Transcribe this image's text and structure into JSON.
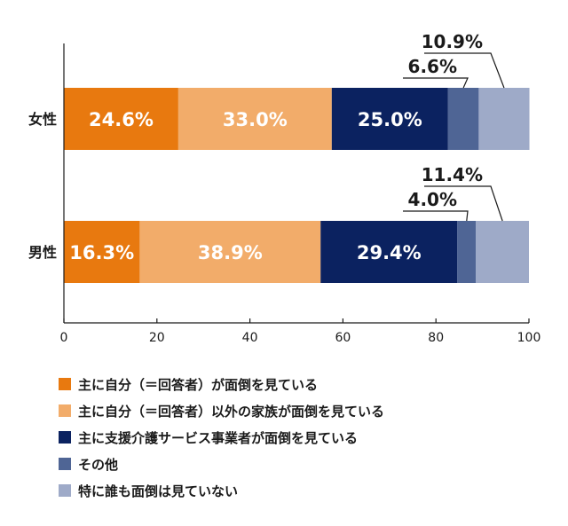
{
  "chart_data": {
    "type": "bar",
    "orientation": "horizontal",
    "stacked": true,
    "categories": [
      "女性",
      "男性"
    ],
    "series": [
      {
        "name": "主に自分（＝回答者）が面倒を見ている",
        "color": "#E8790F",
        "values": [
          24.6,
          16.3
        ],
        "labels": [
          "24.6%",
          "16.3%"
        ]
      },
      {
        "name": "主に自分（＝回答者）以外の家族が面倒を見ている",
        "color": "#F2AC6A",
        "values": [
          33.0,
          38.9
        ],
        "labels": [
          "33.0%",
          "38.9%"
        ]
      },
      {
        "name": "主に支援介護サービス事業者が面倒を見ている",
        "color": "#0B2260",
        "values": [
          25.0,
          29.4
        ],
        "labels": [
          "25.0%",
          "29.4%"
        ]
      },
      {
        "name": "その他",
        "color": "#4F6595",
        "values": [
          6.6,
          4.0
        ],
        "labels": [
          "6.6%",
          "4.0%"
        ]
      },
      {
        "name": "特に誰も面倒は見ていない",
        "color": "#9EAAC8",
        "values": [
          10.9,
          11.4
        ],
        "labels": [
          "10.9%",
          "11.4%"
        ]
      }
    ],
    "xlim": [
      0,
      100
    ],
    "xticks": [
      "0",
      "20",
      "40",
      "60",
      "80",
      "100"
    ],
    "grid": false,
    "legend_position": "bottom"
  }
}
